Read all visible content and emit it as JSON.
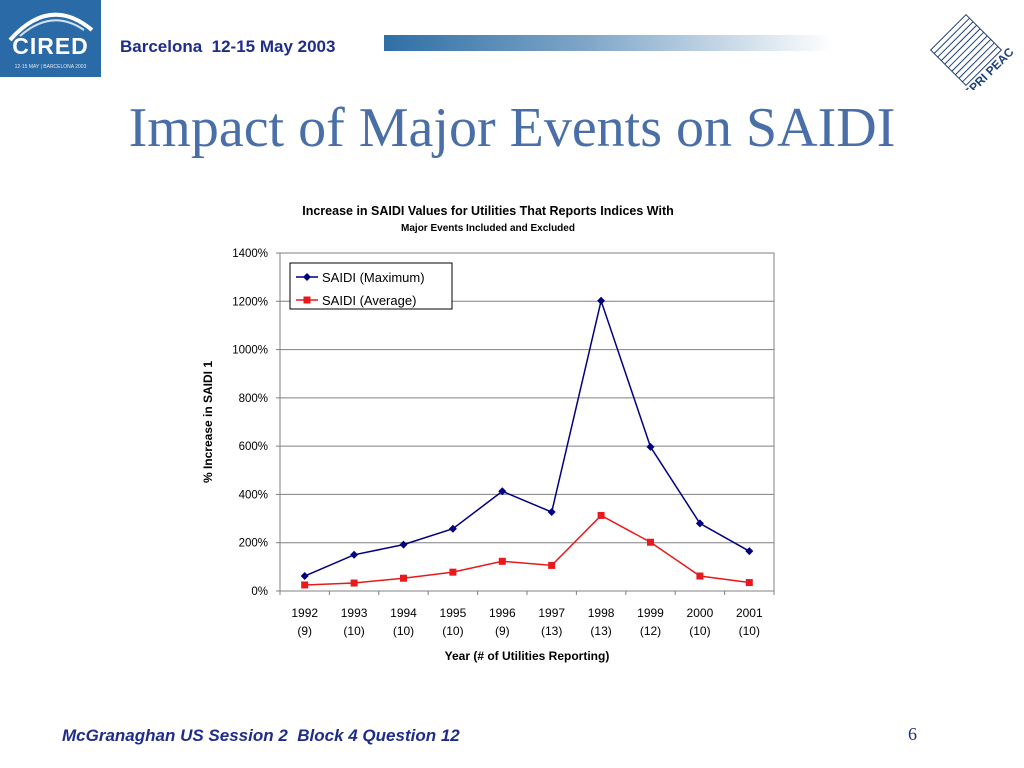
{
  "header": {
    "logo_left_text": "CIRED",
    "logo_left_sub": "12-15 MAY | BARCELONA 2003",
    "conference": "Barcelona  12-15 May 2003",
    "logo_right_text": "EPRI PEAC"
  },
  "slide": {
    "title": "Impact of Major Events on SAIDI"
  },
  "footer": {
    "left_text": "McGranaghan US Session 2  Block 4 Question 12",
    "page_number": "6"
  },
  "colors": {
    "title": "#4a6fa8",
    "header_text": "#1f2d8a",
    "series_max": "#000080",
    "series_avg": "#e8191d"
  },
  "chart_data": {
    "type": "line",
    "title": "Increase in SAIDI Values for Utilities That Reports Indices With",
    "subtitle": "Major Events Included and Excluded",
    "xlabel": "Year (# of Utilities Reporting)",
    "ylabel": "% Increase in SAIDI  1",
    "categories": [
      "1992",
      "1993",
      "1994",
      "1995",
      "1996",
      "1997",
      "1998",
      "1999",
      "2000",
      "2001"
    ],
    "category_counts": [
      "(9)",
      "(10)",
      "(10)",
      "(10)",
      "(9)",
      "(13)",
      "(13)",
      "(12)",
      "(10)",
      "(10)"
    ],
    "ylim": [
      0,
      1400
    ],
    "yticks": [
      0,
      200,
      400,
      600,
      800,
      1000,
      1200,
      1400
    ],
    "ytick_labels": [
      "0%",
      "200%",
      "400%",
      "600%",
      "800%",
      "1000%",
      "1200%",
      "1400%"
    ],
    "grid": true,
    "legend_position": "top-left",
    "series": [
      {
        "name": "SAIDI (Maximum)",
        "marker": "diamond",
        "color": "#000080",
        "values": [
          62,
          150,
          192,
          258,
          413,
          327,
          1202,
          597,
          280,
          165
        ]
      },
      {
        "name": "SAIDI (Average)",
        "marker": "square",
        "color": "#e8191d",
        "values": [
          25,
          33,
          53,
          78,
          123,
          106,
          313,
          202,
          62,
          35
        ]
      }
    ]
  }
}
